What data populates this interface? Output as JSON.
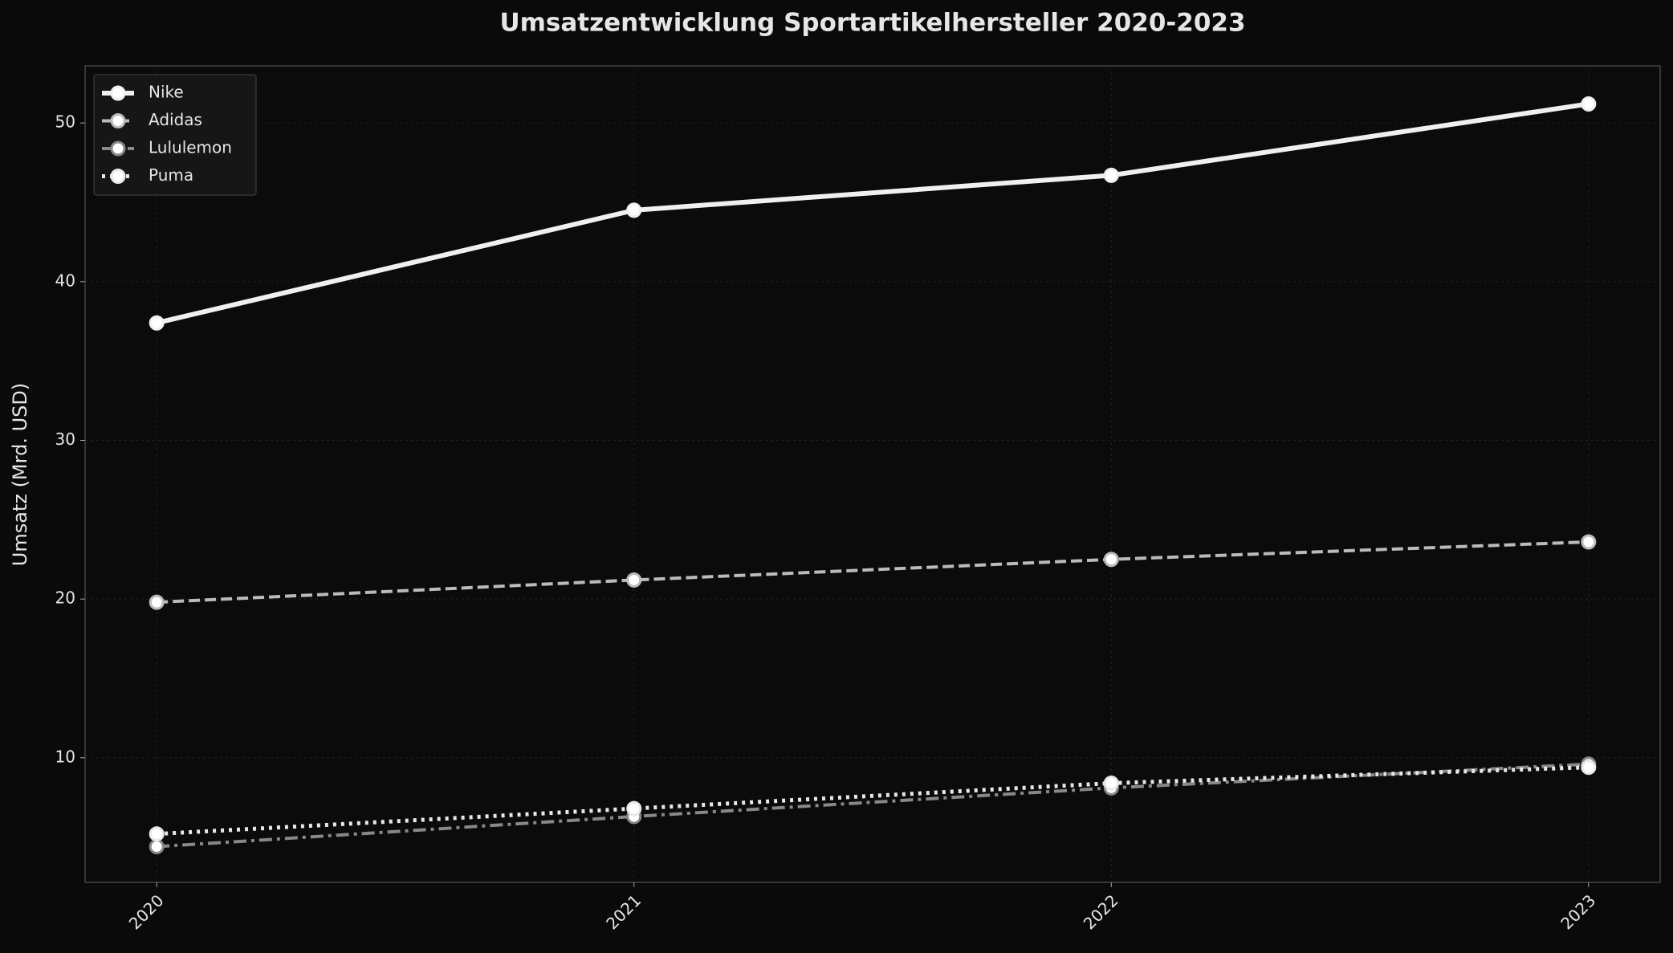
{
  "chart_data": {
    "type": "line",
    "title": "Umsatzentwicklung Sportartikelhersteller 2020-2023",
    "y_label": "Umsatz (Mrd. USD)",
    "categories": [
      "2020",
      "2021",
      "2022",
      "2023"
    ],
    "series": [
      {
        "name": "Nike",
        "color": "#f0f0f0",
        "linestyle": "solid",
        "values": [
          37.4,
          44.5,
          46.7,
          51.2
        ]
      },
      {
        "name": "Adidas",
        "color": "#bbbbbb",
        "linestyle": "dashed",
        "values": [
          19.8,
          21.2,
          22.5,
          23.6
        ]
      },
      {
        "name": "Lululemon",
        "color": "#888888",
        "linestyle": "dashdot",
        "values": [
          4.4,
          6.3,
          8.1,
          9.6
        ]
      },
      {
        "name": "Puma",
        "color": "#e8e8e8",
        "linestyle": "dotted",
        "values": [
          5.2,
          6.8,
          8.4,
          9.4
        ]
      }
    ],
    "ylim": [
      2.15,
      53.6
    ],
    "yticks": [
      10,
      20,
      30,
      40,
      50
    ],
    "grid": true,
    "legend": "upper left"
  }
}
